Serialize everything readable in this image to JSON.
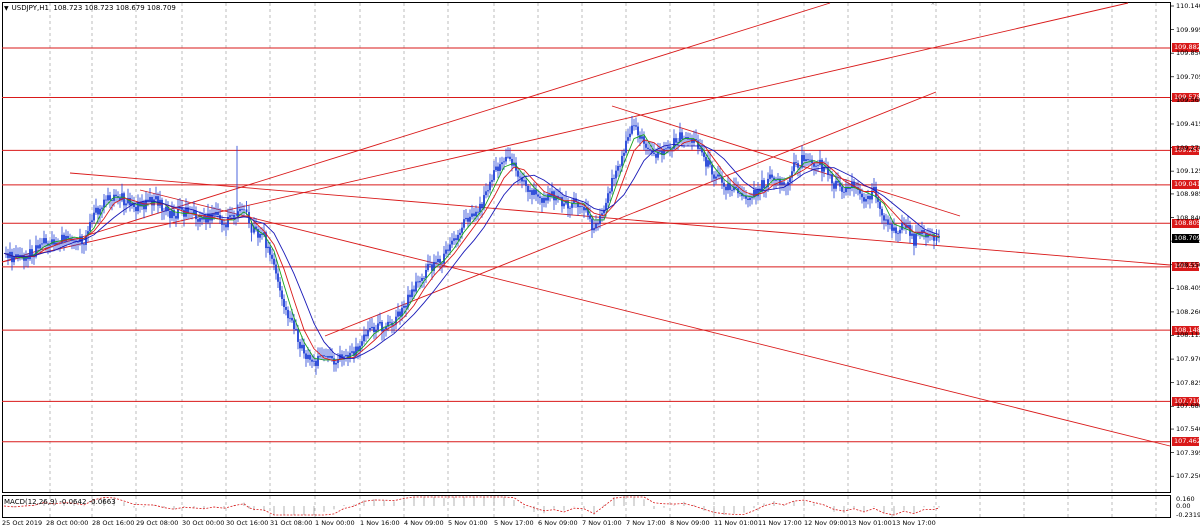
{
  "symbol": {
    "label": "USDJPY,H1",
    "ohlc": "108.723 108.723 108.679 108.709"
  },
  "colors": {
    "level_line": "#d91a1a",
    "candle": "#1f3fd6",
    "ma_fast": "#1aa31a",
    "ma_mid": "#d91a1a",
    "ma_slow": "#1a1ab8",
    "grid": "#a0a0a0",
    "macd_signal": "#d91a1a",
    "macd_hist": "#a0a0a0"
  },
  "price_axis": {
    "labels": [
      "110.140",
      "109.995",
      "109.850",
      "109.705",
      "109.560",
      "109.415",
      "109.270",
      "109.125",
      "108.985",
      "108.840",
      "108.695",
      "108.550",
      "108.405",
      "108.260",
      "108.115",
      "107.970",
      "107.825",
      "107.680",
      "107.540",
      "107.395",
      "107.250"
    ],
    "min": 107.19,
    "max": 110.14
  },
  "levels": [
    "109.882",
    "109.578",
    "109.253",
    "109.041",
    "108.805",
    "108.537",
    "108.148",
    "107.710",
    "107.462"
  ],
  "current_price": "108.709",
  "time_axis": {
    "labels": [
      "25 Oct 2019",
      "28 Oct 00:00",
      "28 Oct 16:00",
      "29 Oct 08:00",
      "30 Oct 00:00",
      "30 Oct 16:00",
      "31 Oct 08:00",
      "1 Nov 00:00",
      "1 Nov 16:00",
      "4 Nov 09:00",
      "5 Nov 01:00",
      "5 Nov 17:00",
      "6 Nov 09:00",
      "7 Nov 01:00",
      "7 Nov 17:00",
      "8 Nov 09:00",
      "11 Nov 01:00",
      "11 Nov 17:00",
      "12 Nov 09:00",
      "13 Nov 01:00",
      "13 Nov 17:00"
    ]
  },
  "macd": {
    "title": "MACD(12,26,9) -0.0642 -0.0663",
    "axis_labels": [
      "0.160",
      "0.00",
      "-0.2319"
    ]
  },
  "chart_data": {
    "type": "candlestick",
    "title": "USDJPY,H1",
    "ylim": [
      107.19,
      110.14
    ],
    "close_path": [
      [
        0,
        108.62
      ],
      [
        10,
        108.58
      ],
      [
        20,
        108.6
      ],
      [
        30,
        108.62
      ],
      [
        40,
        108.7
      ],
      [
        50,
        108.68
      ],
      [
        60,
        108.72
      ],
      [
        70,
        108.72
      ],
      [
        80,
        108.7
      ],
      [
        90,
        108.85
      ],
      [
        100,
        108.95
      ],
      [
        110,
        108.98
      ],
      [
        120,
        108.95
      ],
      [
        130,
        108.9
      ],
      [
        140,
        108.92
      ],
      [
        150,
        108.95
      ],
      [
        160,
        108.9
      ],
      [
        170,
        108.85
      ],
      [
        180,
        108.88
      ],
      [
        190,
        108.85
      ],
      [
        200,
        108.82
      ],
      [
        210,
        108.85
      ],
      [
        220,
        108.8
      ],
      [
        230,
        108.85
      ],
      [
        240,
        108.9
      ],
      [
        245,
        108.8
      ],
      [
        250,
        108.75
      ],
      [
        260,
        108.72
      ],
      [
        270,
        108.55
      ],
      [
        280,
        108.3
      ],
      [
        290,
        108.15
      ],
      [
        300,
        108.0
      ],
      [
        310,
        107.95
      ],
      [
        320,
        107.98
      ],
      [
        330,
        107.95
      ],
      [
        340,
        107.99
      ],
      [
        350,
        108.0
      ],
      [
        360,
        108.1
      ],
      [
        370,
        108.15
      ],
      [
        380,
        108.18
      ],
      [
        390,
        108.2
      ],
      [
        400,
        108.3
      ],
      [
        410,
        108.4
      ],
      [
        420,
        108.5
      ],
      [
        430,
        108.55
      ],
      [
        440,
        108.6
      ],
      [
        450,
        108.7
      ],
      [
        460,
        108.8
      ],
      [
        470,
        108.85
      ],
      [
        480,
        108.95
      ],
      [
        490,
        109.1
      ],
      [
        500,
        109.2
      ],
      [
        510,
        109.15
      ],
      [
        520,
        109.05
      ],
      [
        530,
        109.0
      ],
      [
        540,
        108.95
      ],
      [
        550,
        108.98
      ],
      [
        560,
        108.9
      ],
      [
        570,
        108.95
      ],
      [
        580,
        108.9
      ],
      [
        590,
        108.75
      ],
      [
        600,
        108.9
      ],
      [
        610,
        109.1
      ],
      [
        620,
        109.25
      ],
      [
        630,
        109.4
      ],
      [
        640,
        109.3
      ],
      [
        650,
        109.2
      ],
      [
        660,
        109.25
      ],
      [
        670,
        109.3
      ],
      [
        680,
        109.35
      ],
      [
        690,
        109.3
      ],
      [
        700,
        109.2
      ],
      [
        710,
        109.1
      ],
      [
        720,
        109.05
      ],
      [
        730,
        109.0
      ],
      [
        740,
        108.95
      ],
      [
        750,
        108.98
      ],
      [
        760,
        109.05
      ],
      [
        770,
        109.1
      ],
      [
        780,
        109.05
      ],
      [
        790,
        109.15
      ],
      [
        800,
        109.2
      ],
      [
        810,
        109.18
      ],
      [
        820,
        109.15
      ],
      [
        830,
        109.05
      ],
      [
        840,
        109.0
      ],
      [
        850,
        109.05
      ],
      [
        860,
        108.95
      ],
      [
        870,
        109.0
      ],
      [
        880,
        108.85
      ],
      [
        890,
        108.75
      ],
      [
        900,
        108.8
      ],
      [
        910,
        108.7
      ],
      [
        920,
        108.75
      ],
      [
        930,
        108.72
      ],
      [
        935,
        108.71
      ]
    ]
  }
}
